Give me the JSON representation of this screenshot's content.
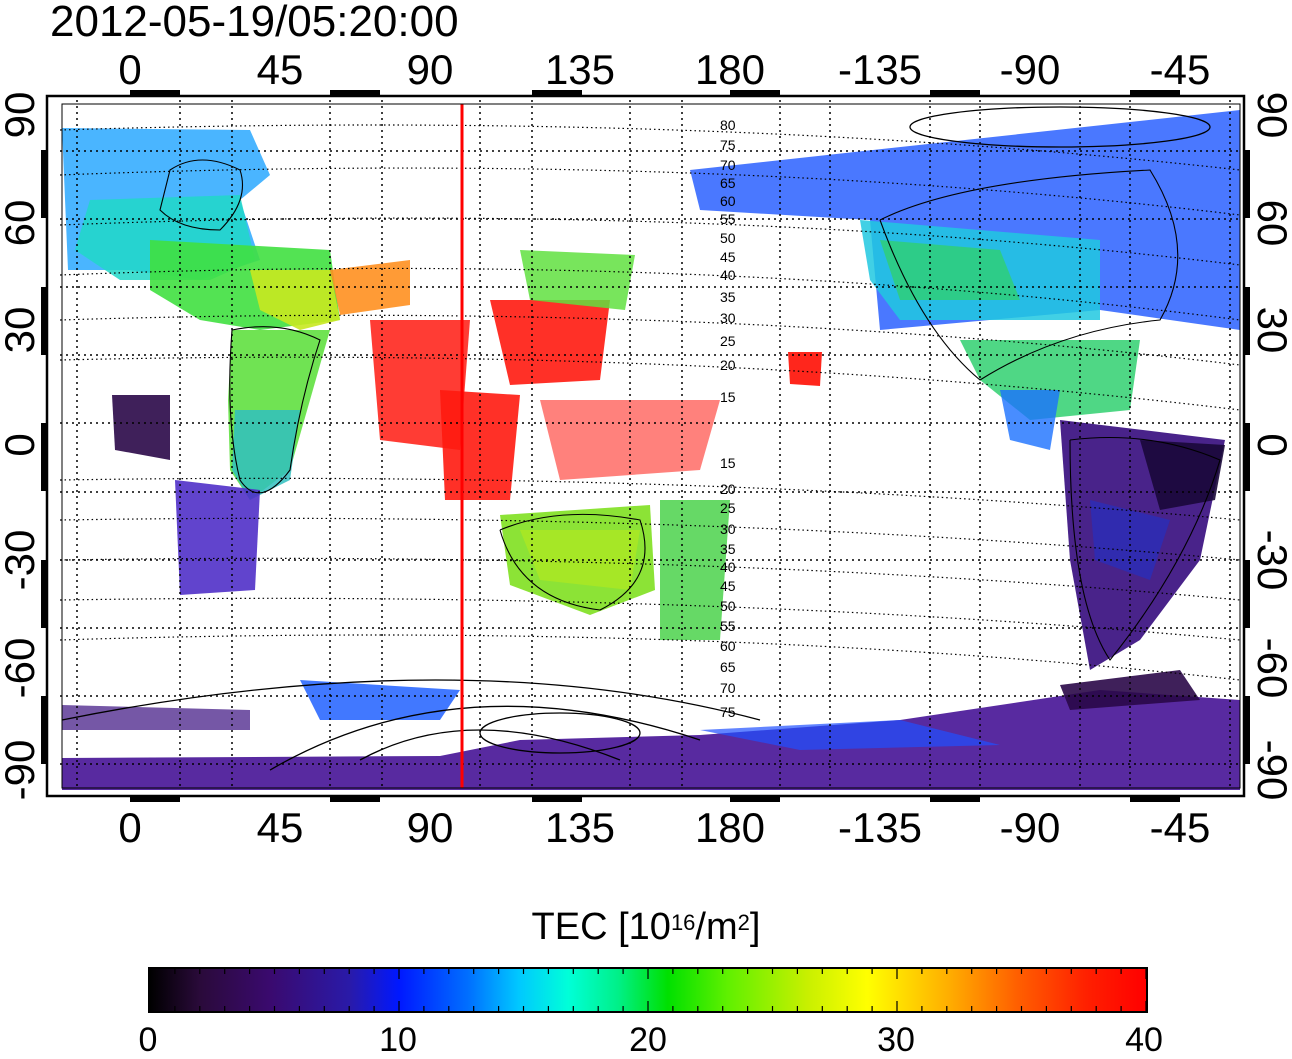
{
  "timestamp": "2012-05-19/05:20:00",
  "x_axis": {
    "tick_labels": [
      "0",
      "45",
      "90",
      "135",
      "180",
      "-135",
      "-90",
      "-45"
    ],
    "tick_longitudes": [
      0,
      45,
      90,
      135,
      180,
      225,
      270,
      315
    ],
    "range_longitude": [
      -23,
      337
    ]
  },
  "y_axis": {
    "tick_labels": [
      "90",
      "60",
      "30",
      "0",
      "-30",
      "-60",
      "-90"
    ],
    "tick_latitudes": [
      90,
      60,
      30,
      0,
      -30,
      -60,
      -90
    ]
  },
  "meridian_marker": {
    "longitude": 100,
    "color": "#ff0000"
  },
  "contour_labels": [
    "80",
    "75",
    "70",
    "65",
    "60",
    "55",
    "50",
    "45",
    "40",
    "35",
    "30",
    "25",
    "20",
    "15",
    "15",
    "20",
    "25",
    "30",
    "35",
    "40",
    "45",
    "50",
    "55",
    "60",
    "65",
    "70",
    "75"
  ],
  "colorbar": {
    "title_prefix": "TEC  [10",
    "title_exp1": "16",
    "title_mid": "/m",
    "title_exp2": "2",
    "title_suffix": "]",
    "min": 0,
    "max": 40,
    "tick_labels": [
      "0",
      "10",
      "20",
      "30",
      "40"
    ],
    "colors": [
      "#000000",
      "#3a0a6e",
      "#0018ff",
      "#00c8ff",
      "#00e000",
      "#ffff00",
      "#ff6000",
      "#ff0000"
    ]
  }
}
